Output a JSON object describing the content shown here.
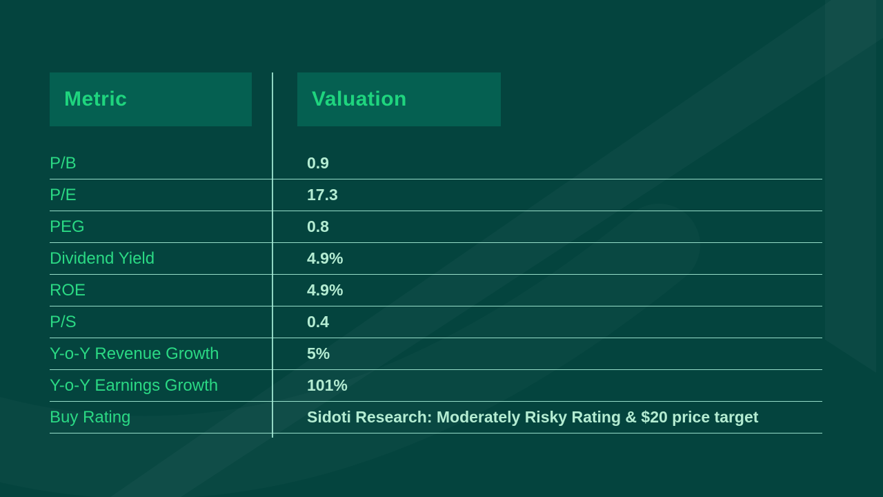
{
  "slide": {
    "background_color": "#04443e",
    "watermark_color": "#0b4b44",
    "watermark_shape": "upward-trend-arrow"
  },
  "table": {
    "columns": [
      {
        "label": "Metric"
      },
      {
        "label": "Valuation"
      }
    ],
    "header_bg": "#056051",
    "header_text_color": "#1fd47e",
    "label_color": "#2bd984",
    "value_color": "#b4ecd2",
    "line_color": "#a9efd9"
  },
  "chart_data": {
    "type": "table",
    "title": "",
    "columns": [
      "Metric",
      "Valuation"
    ],
    "rows": [
      [
        "P/B",
        "0.9"
      ],
      [
        "P/E",
        "17.3"
      ],
      [
        "PEG",
        "0.8"
      ],
      [
        "Dividend Yield",
        "4.9%"
      ],
      [
        "ROE",
        "4.9%"
      ],
      [
        "P/S",
        "0.4"
      ],
      [
        "Y-o-Y Revenue Growth",
        "5%"
      ],
      [
        "Y-o-Y Earnings Growth",
        "101%"
      ],
      [
        "Buy Rating",
        "Sidoti Research: Moderately Risky Rating & $20 price target"
      ]
    ]
  }
}
